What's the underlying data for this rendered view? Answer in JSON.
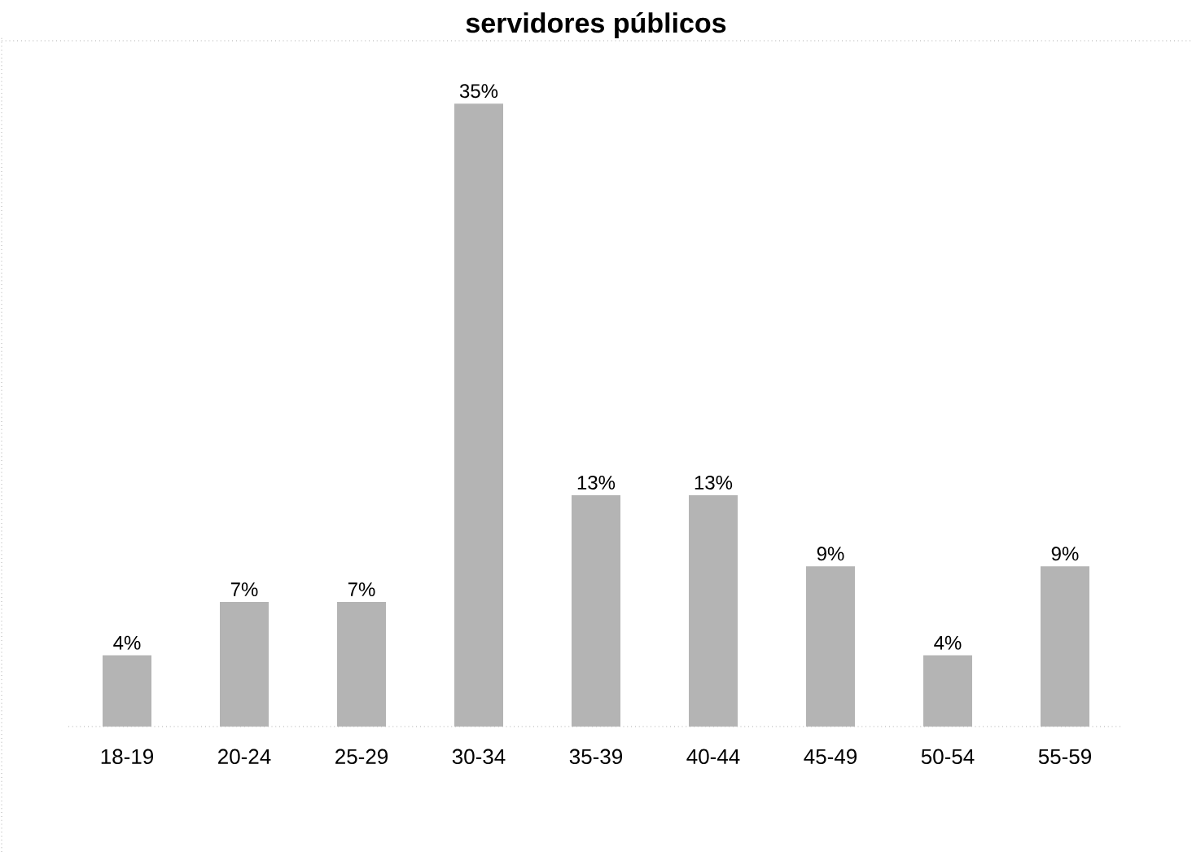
{
  "chart_data": {
    "type": "bar",
    "title": "servidores públicos",
    "categories": [
      "18-19",
      "20-24",
      "25-29",
      "30-34",
      "35-39",
      "40-44",
      "45-49",
      "50-54",
      "55-59"
    ],
    "values": [
      4,
      7,
      7,
      35,
      13,
      13,
      9,
      4,
      9
    ],
    "value_labels": [
      "4%",
      "7%",
      "7%",
      "35%",
      "13%",
      "13%",
      "9%",
      "4%",
      "9%"
    ],
    "color": "#b4b4b4",
    "tick_labels": "x"
  }
}
